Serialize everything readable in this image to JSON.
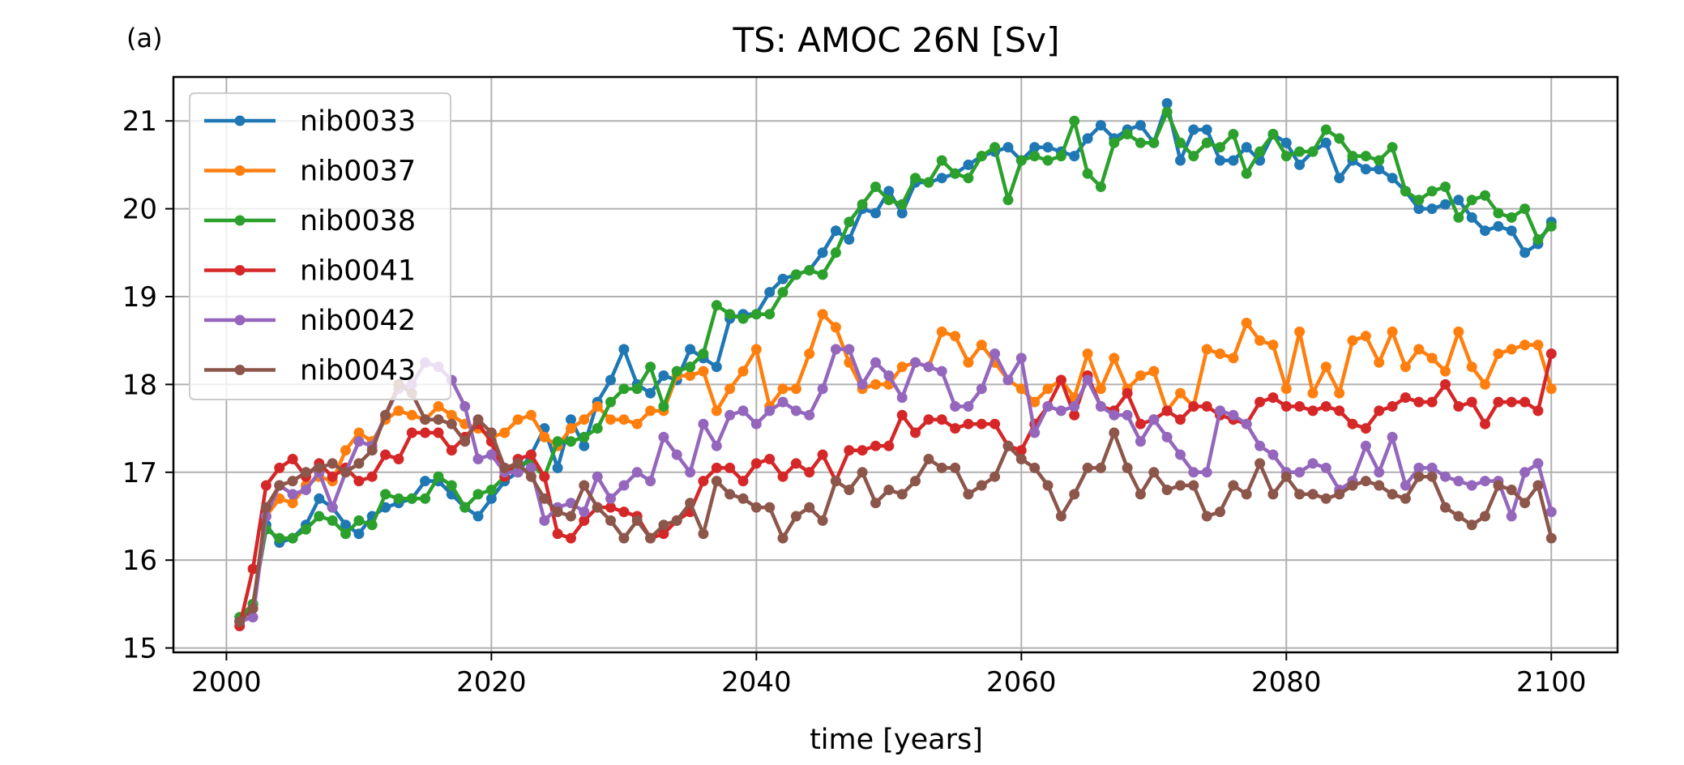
{
  "chart_data": {
    "type": "line",
    "panel_label": "(a)",
    "title": "TS: AMOC 26N [Sv]",
    "xlabel": "time [years]",
    "ylabel": "",
    "xlim": [
      1996,
      2105
    ],
    "ylim": [
      14.95,
      21.5
    ],
    "xticks": [
      2000,
      2020,
      2040,
      2060,
      2080,
      2100
    ],
    "yticks": [
      15,
      16,
      17,
      18,
      19,
      20,
      21
    ],
    "grid": true,
    "legend_position": "upper-left",
    "x_start": 2001,
    "series": [
      {
        "name": "nib0033",
        "color": "#1f77b4",
        "values": [
          15.3,
          15.5,
          16.4,
          16.2,
          16.25,
          16.4,
          16.7,
          16.6,
          16.4,
          16.3,
          16.5,
          16.6,
          16.65,
          16.7,
          16.9,
          16.9,
          16.75,
          16.6,
          16.5,
          16.7,
          16.9,
          17.0,
          17.2,
          17.5,
          17.05,
          17.6,
          17.3,
          17.8,
          18.05,
          18.4,
          18.0,
          17.9,
          18.1,
          18.05,
          18.4,
          18.3,
          18.2,
          18.75,
          18.8,
          18.8,
          19.05,
          19.2,
          19.25,
          19.3,
          19.5,
          19.75,
          19.65,
          20.0,
          19.95,
          20.2,
          19.95,
          20.3,
          20.3,
          20.35,
          20.4,
          20.5,
          20.6,
          20.65,
          20.7,
          20.55,
          20.7,
          20.7,
          20.65,
          20.6,
          20.8,
          20.95,
          20.8,
          20.9,
          20.95,
          20.75,
          21.2,
          20.55,
          20.9,
          20.9,
          20.55,
          20.55,
          20.7,
          20.55,
          20.85,
          20.75,
          20.5,
          20.65,
          20.75,
          20.35,
          20.55,
          20.45,
          20.45,
          20.35,
          20.2,
          20.0,
          20.0,
          20.05,
          20.1,
          19.9,
          19.75,
          19.8,
          19.75,
          19.5,
          19.6,
          19.85
        ]
      },
      {
        "name": "nib0037",
        "color": "#ff7f0e",
        "values": [
          15.3,
          15.45,
          16.5,
          16.7,
          16.65,
          16.85,
          16.95,
          16.9,
          17.25,
          17.45,
          17.35,
          17.6,
          17.7,
          17.65,
          17.6,
          17.75,
          17.65,
          17.55,
          17.5,
          17.4,
          17.45,
          17.6,
          17.65,
          17.4,
          17.3,
          17.5,
          17.6,
          17.75,
          17.6,
          17.6,
          17.55,
          17.7,
          17.7,
          18.1,
          18.1,
          18.15,
          17.7,
          17.95,
          18.15,
          18.4,
          17.75,
          17.95,
          17.95,
          18.35,
          18.8,
          18.65,
          18.25,
          17.95,
          18.0,
          18.0,
          18.2,
          18.25,
          18.2,
          18.6,
          18.55,
          18.25,
          18.45,
          18.25,
          18.05,
          17.95,
          17.8,
          17.95,
          18.05,
          17.85,
          18.35,
          17.95,
          18.3,
          17.95,
          18.1,
          18.15,
          17.7,
          17.9,
          17.75,
          18.4,
          18.35,
          18.3,
          18.7,
          18.5,
          18.45,
          17.95,
          18.6,
          17.9,
          18.2,
          17.9,
          18.5,
          18.55,
          18.25,
          18.6,
          18.2,
          18.4,
          18.3,
          18.15,
          18.6,
          18.2,
          18.0,
          18.35,
          18.4,
          18.45,
          18.45,
          17.95
        ]
      },
      {
        "name": "nib0038",
        "color": "#2ca02c",
        "values": [
          15.35,
          15.5,
          16.35,
          16.25,
          16.25,
          16.35,
          16.5,
          16.45,
          16.3,
          16.45,
          16.4,
          16.75,
          16.7,
          16.7,
          16.7,
          16.95,
          16.85,
          16.6,
          16.75,
          16.8,
          16.95,
          17.1,
          17.1,
          16.95,
          17.35,
          17.35,
          17.4,
          17.5,
          17.8,
          17.95,
          17.95,
          18.2,
          17.75,
          18.15,
          18.2,
          18.35,
          18.9,
          18.8,
          18.75,
          18.8,
          18.8,
          19.05,
          19.25,
          19.3,
          19.25,
          19.5,
          19.85,
          20.05,
          20.25,
          20.1,
          20.05,
          20.35,
          20.3,
          20.55,
          20.4,
          20.35,
          20.6,
          20.7,
          20.1,
          20.55,
          20.6,
          20.55,
          20.6,
          21.0,
          20.4,
          20.25,
          20.75,
          20.85,
          20.75,
          20.75,
          21.1,
          20.75,
          20.6,
          20.75,
          20.7,
          20.85,
          20.4,
          20.65,
          20.85,
          20.6,
          20.65,
          20.65,
          20.9,
          20.8,
          20.6,
          20.6,
          20.55,
          20.7,
          20.2,
          20.1,
          20.2,
          20.25,
          19.9,
          20.1,
          20.15,
          19.95,
          19.9,
          20.0,
          19.65,
          19.8
        ]
      },
      {
        "name": "nib0041",
        "color": "#d62728",
        "values": [
          15.25,
          15.9,
          16.85,
          17.05,
          17.15,
          16.95,
          17.1,
          16.95,
          17.05,
          16.9,
          16.95,
          17.2,
          17.15,
          17.45,
          17.45,
          17.45,
          17.25,
          17.4,
          17.55,
          17.35,
          16.95,
          17.15,
          17.2,
          16.95,
          16.3,
          16.25,
          16.45,
          16.6,
          16.6,
          16.55,
          16.5,
          16.25,
          16.3,
          16.45,
          16.55,
          16.9,
          17.05,
          17.05,
          16.9,
          17.1,
          17.15,
          16.95,
          17.1,
          17.0,
          17.2,
          16.9,
          17.25,
          17.25,
          17.3,
          17.3,
          17.65,
          17.45,
          17.6,
          17.6,
          17.5,
          17.55,
          17.55,
          17.55,
          17.3,
          17.25,
          17.55,
          17.75,
          18.05,
          17.65,
          18.1,
          17.75,
          17.7,
          17.9,
          17.55,
          17.6,
          17.7,
          17.6,
          17.75,
          17.75,
          17.65,
          17.6,
          17.55,
          17.8,
          17.85,
          17.75,
          17.75,
          17.7,
          17.75,
          17.7,
          17.55,
          17.5,
          17.7,
          17.75,
          17.85,
          17.8,
          17.8,
          18.0,
          17.75,
          17.8,
          17.55,
          17.8,
          17.8,
          17.8,
          17.7,
          18.35
        ]
      },
      {
        "name": "nib0042",
        "color": "#9467bd",
        "values": [
          15.3,
          15.35,
          16.5,
          16.85,
          16.75,
          16.8,
          17.0,
          16.6,
          17.0,
          17.35,
          17.3,
          17.65,
          17.95,
          18.0,
          18.25,
          18.2,
          18.05,
          17.75,
          17.15,
          17.2,
          17.0,
          17.0,
          17.05,
          16.45,
          16.6,
          16.65,
          16.55,
          16.95,
          16.7,
          16.85,
          17.0,
          16.9,
          17.4,
          17.2,
          17.0,
          17.55,
          17.3,
          17.65,
          17.7,
          17.55,
          17.7,
          17.8,
          17.7,
          17.65,
          17.95,
          18.4,
          18.4,
          18.0,
          18.25,
          18.1,
          17.85,
          18.25,
          18.2,
          18.15,
          17.75,
          17.75,
          17.95,
          18.35,
          18.05,
          18.3,
          17.45,
          17.75,
          17.7,
          17.75,
          18.05,
          17.75,
          17.65,
          17.65,
          17.35,
          17.6,
          17.4,
          17.2,
          17.0,
          17.0,
          17.7,
          17.65,
          17.55,
          17.3,
          17.2,
          17.0,
          17.0,
          17.1,
          17.05,
          16.8,
          16.9,
          17.3,
          17.0,
          17.4,
          16.85,
          17.05,
          17.05,
          16.95,
          16.9,
          16.85,
          16.9,
          16.9,
          16.5,
          17.0,
          17.1,
          16.55
        ]
      },
      {
        "name": "nib0043",
        "color": "#8c564b",
        "values": [
          15.3,
          15.45,
          16.6,
          16.85,
          16.9,
          17.0,
          17.05,
          17.1,
          17.0,
          17.1,
          17.25,
          17.65,
          18.0,
          17.9,
          17.6,
          17.6,
          17.55,
          17.35,
          17.6,
          17.45,
          17.05,
          17.1,
          16.95,
          16.7,
          16.55,
          16.5,
          16.85,
          16.6,
          16.45,
          16.25,
          16.45,
          16.25,
          16.4,
          16.45,
          16.65,
          16.3,
          16.9,
          16.75,
          16.7,
          16.6,
          16.6,
          16.25,
          16.5,
          16.6,
          16.45,
          16.9,
          16.8,
          17.0,
          16.65,
          16.8,
          16.75,
          16.9,
          17.15,
          17.05,
          17.05,
          16.75,
          16.85,
          16.95,
          17.3,
          17.15,
          17.05,
          16.85,
          16.5,
          16.75,
          17.05,
          17.05,
          17.45,
          17.05,
          16.75,
          17.0,
          16.8,
          16.85,
          16.85,
          16.5,
          16.55,
          16.85,
          16.75,
          17.1,
          16.75,
          16.95,
          16.75,
          16.75,
          16.7,
          16.75,
          16.85,
          16.9,
          16.85,
          16.75,
          16.7,
          16.95,
          16.95,
          16.6,
          16.5,
          16.4,
          16.5,
          16.85,
          16.8,
          16.65,
          16.85,
          16.25
        ]
      }
    ]
  }
}
